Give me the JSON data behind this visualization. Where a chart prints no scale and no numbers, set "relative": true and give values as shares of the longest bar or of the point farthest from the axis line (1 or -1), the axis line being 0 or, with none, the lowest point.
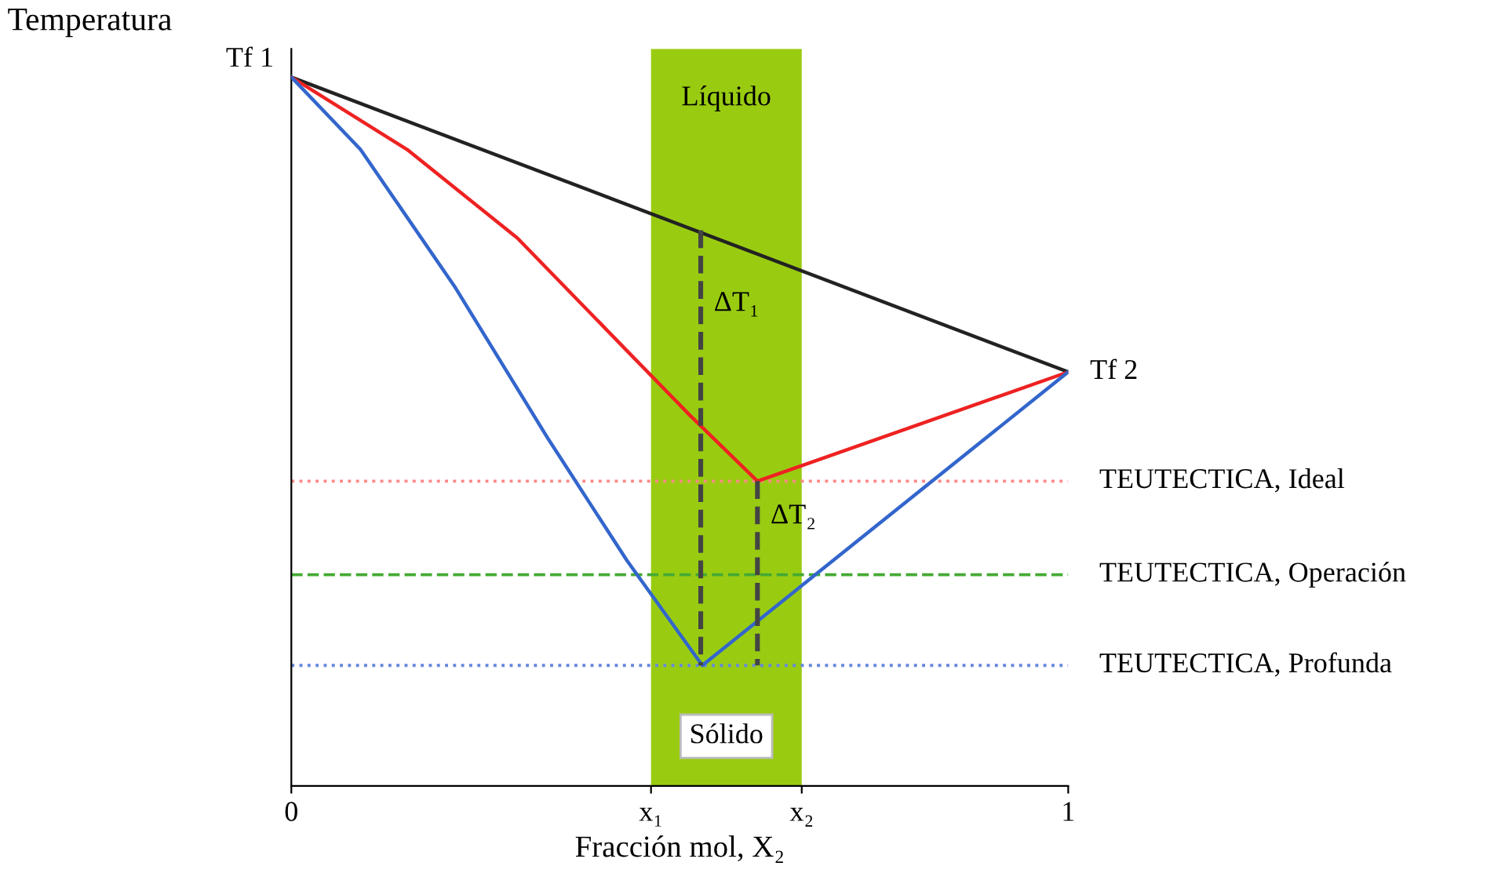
{
  "chart_data": {
    "type": "line",
    "relative": true,
    "xlabel": "Fracción mol, X₂",
    "ylabel": "Temperatura",
    "xlim": [
      0,
      1
    ],
    "xticks": [
      0,
      {
        "value": 0.463,
        "label": "x₁"
      },
      {
        "value": 0.657,
        "label": "x₂"
      },
      1
    ],
    "series": [
      {
        "color": "#222222",
        "x": [
          0,
          1
        ],
        "values": [
          1,
          0.584
        ]
      },
      {
        "color": "#ee2222",
        "x": [
          0,
          0.149,
          0.291,
          0.432,
          0.513,
          0.6,
          1
        ],
        "values": [
          1,
          0.898,
          0.773,
          0.614,
          0.523,
          0.43,
          0.584
        ]
      },
      {
        "color": "#3366cc",
        "x": [
          0,
          0.089,
          0.21,
          0.331,
          0.432,
          0.529,
          1
        ],
        "values": [
          1,
          0.898,
          0.705,
          0.489,
          0.318,
          0.17,
          0.584
        ]
      },
      {
        "color": "#444444",
        "line_style": "dashed",
        "x": [
          0.527,
          0.527
        ],
        "values": [
          0.784,
          0.17
        ]
      },
      {
        "color": "#444444",
        "line_style": "dashed",
        "x": [
          0.6,
          0.6
        ],
        "values": [
          0.43,
          0.17
        ]
      }
    ],
    "bands": [
      {
        "axis": "x",
        "from": 0.463,
        "to": 0.657,
        "label": "Líquido",
        "color": "#99cc11"
      }
    ],
    "ref_lines": [
      {
        "axis": "y",
        "value": 0.43,
        "label": "TEUTECTICA, Ideal",
        "color": "#ff8888",
        "line_style": "dotted"
      },
      {
        "axis": "y",
        "value": 0.298,
        "label": "TEUTECTICA, Operación",
        "color": "#44aa33",
        "line_style": "dashed"
      },
      {
        "axis": "y",
        "value": 0.17,
        "label": "TEUTECTICA, Profunda",
        "color": "#6688dd",
        "line_style": "dotted"
      }
    ],
    "annotations": [
      {
        "text": "Tf 1",
        "x": 0,
        "y": 1
      },
      {
        "text": "Tf 2",
        "x": 1,
        "y": 0.584
      },
      {
        "text": "ΔT₁",
        "x": 0.527,
        "y": 0.68
      },
      {
        "text": "ΔT₂",
        "x": 0.6,
        "y": 0.38
      },
      "Sólido"
    ]
  }
}
